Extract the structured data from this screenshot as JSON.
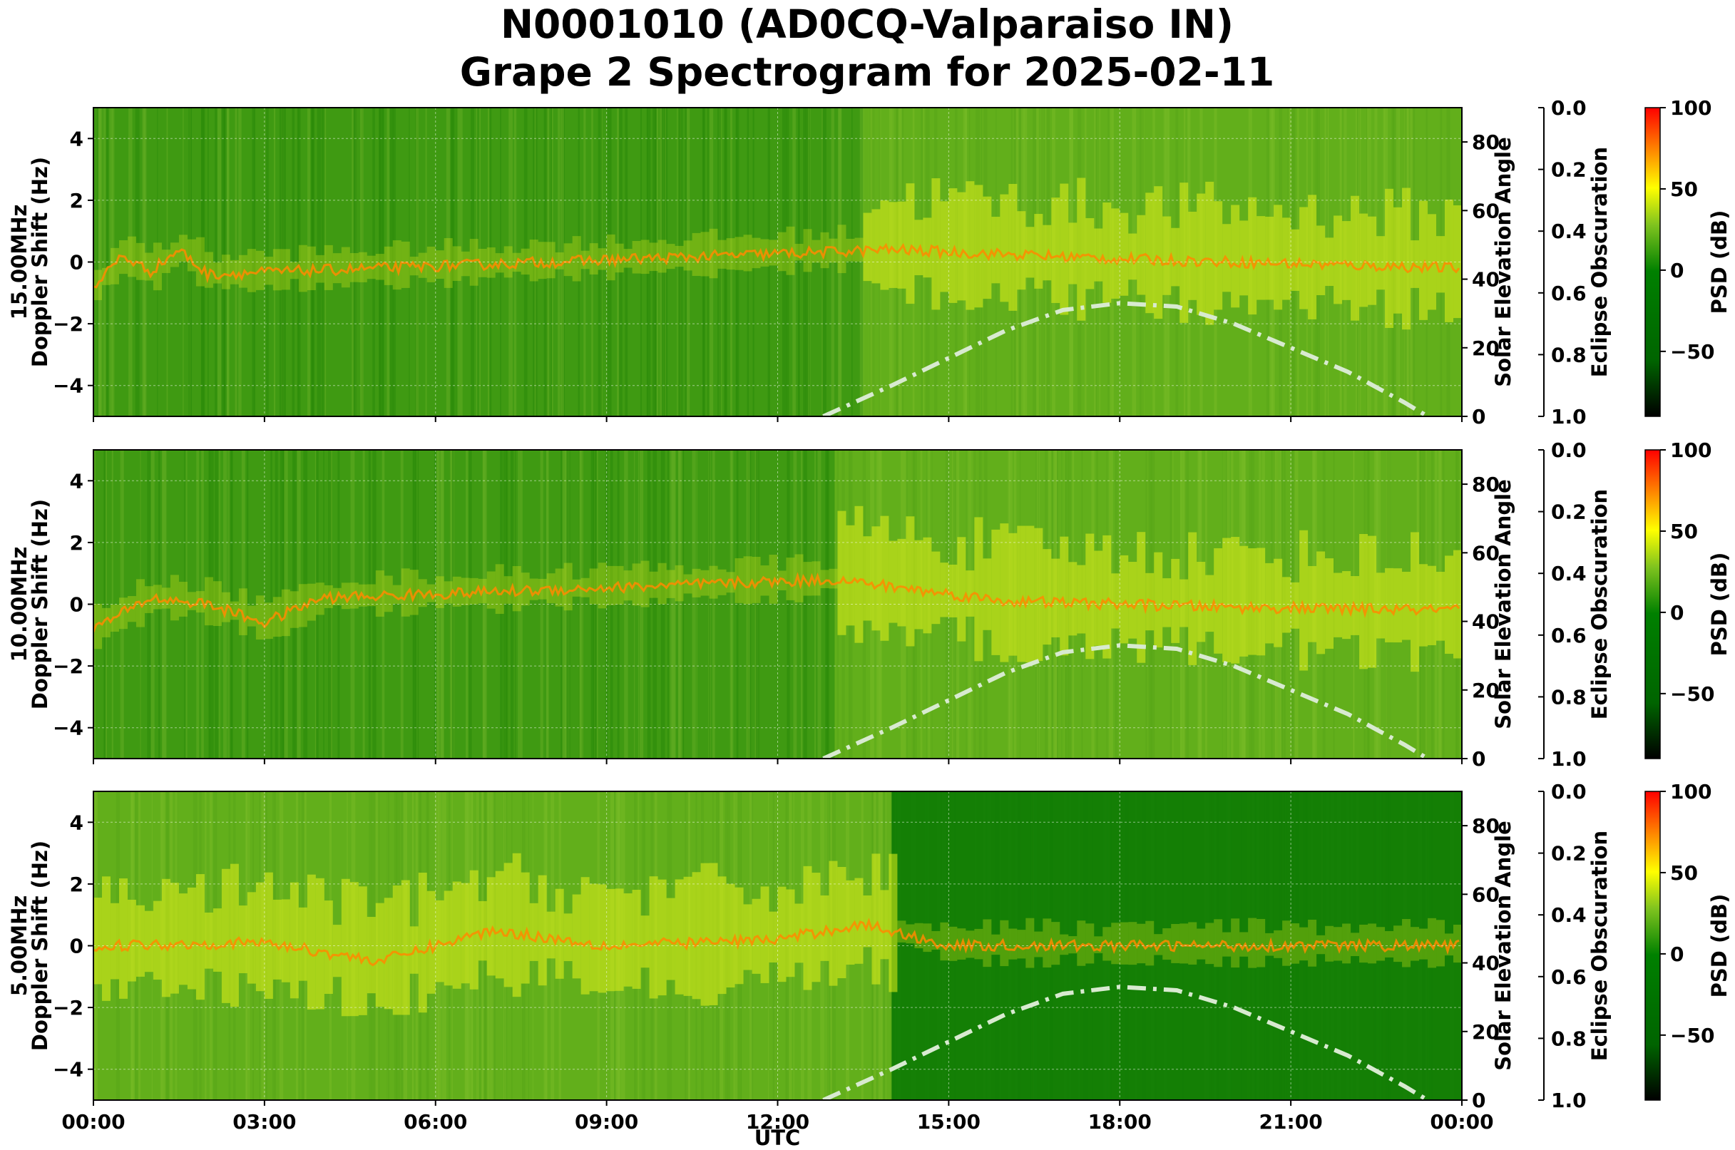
{
  "chart_data": {
    "type": "heatmap",
    "title_line1": "N0001010 (AD0CQ-Valparaiso IN)",
    "title_line2": "Grape 2 Spectrogram for 2025-02-11",
    "xlabel": "UTC",
    "x_ticks": [
      "00:00",
      "03:00",
      "06:00",
      "09:00",
      "12:00",
      "15:00",
      "18:00",
      "21:00",
      "00:00"
    ],
    "x_range_hours": [
      0,
      24
    ],
    "ylabel": "Doppler Shift (Hz)",
    "y_ticks": [
      "4",
      "2",
      "0",
      "−2",
      "−4"
    ],
    "ylim": [
      -5,
      5
    ],
    "right_axis1_label": "Solar Elevation Angle",
    "right_axis1_ticks": [
      "80",
      "60",
      "40",
      "20",
      "0"
    ],
    "right_axis1_range": [
      0,
      90
    ],
    "right_axis2_label": "Eclipse Obscuration",
    "right_axis2_ticks": [
      "0.0",
      "0.2",
      "0.4",
      "0.6",
      "0.8",
      "1.0"
    ],
    "right_axis2_range": [
      0,
      1
    ],
    "colorbar_label": "PSD (dB)",
    "colorbar_ticks": [
      "100",
      "50",
      "0",
      "−50"
    ],
    "colorbar_range": [
      -90,
      100
    ],
    "colormap": [
      "#000000",
      "#006400",
      "#008000",
      "#7fc31f",
      "#ffff00",
      "#ff8000",
      "#ff0000"
    ],
    "grid": true,
    "solar_elevation_curve": {
      "style": "dash-dot",
      "color": "#d8ead0",
      "hours": [
        12.8,
        14,
        15,
        16,
        17,
        18,
        19,
        20,
        21,
        22,
        23,
        23.4
      ],
      "degrees": [
        0,
        9,
        17,
        25,
        31,
        33,
        32,
        27,
        20,
        13,
        4,
        0
      ]
    },
    "panels": [
      {
        "band_label": "15.00MHz",
        "carrier_hz_by_hour": [
          [
            0,
            -0.8
          ],
          [
            0.5,
            0.2
          ],
          [
            1,
            -0.3
          ],
          [
            1.5,
            0.4
          ],
          [
            2,
            -0.4
          ],
          [
            14,
            0.4
          ],
          [
            18,
            0.1
          ],
          [
            24,
            -0.2
          ]
        ],
        "hf_active_hours": [
          13.5,
          24
        ]
      },
      {
        "band_label": "10.00MHz",
        "carrier_hz_by_hour": [
          [
            0,
            -0.8
          ],
          [
            1,
            0.2
          ],
          [
            2,
            0.0
          ],
          [
            3,
            -0.6
          ],
          [
            4,
            0.2
          ],
          [
            13,
            0.8
          ],
          [
            16,
            0.1
          ],
          [
            20,
            -0.1
          ],
          [
            24,
            -0.2
          ]
        ],
        "hf_active_hours": [
          13,
          24
        ]
      },
      {
        "band_label": "5.00MHz",
        "carrier_hz_by_hour": [
          [
            0,
            0.0
          ],
          [
            3,
            0.1
          ],
          [
            5,
            -0.5
          ],
          [
            7,
            0.5
          ],
          [
            9,
            0.0
          ],
          [
            12,
            0.2
          ],
          [
            13.5,
            0.7
          ],
          [
            15,
            0.0
          ],
          [
            24,
            0.0
          ]
        ],
        "hf_active_hours": [
          0,
          14
        ]
      }
    ]
  }
}
